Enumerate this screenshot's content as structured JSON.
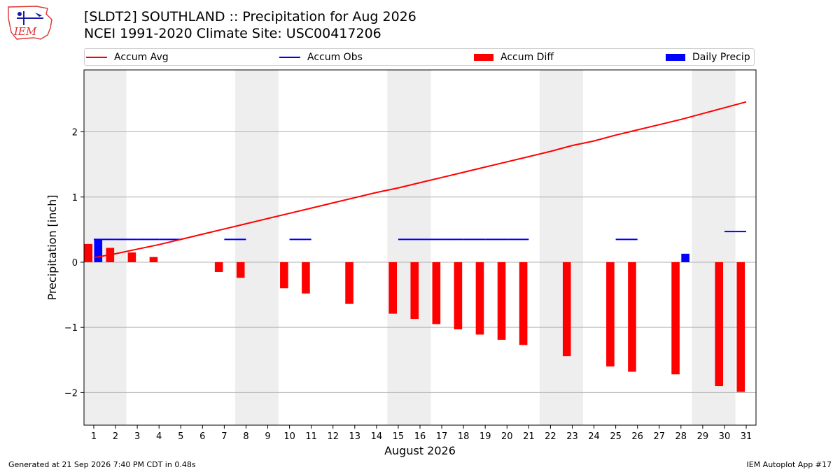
{
  "header": {
    "logo_text": "IEM",
    "title_line1": "[SLDT2] SOUTHLAND :: Precipitation for Aug 2026",
    "title_line2": "NCEI 1991-2020 Climate Site: USC00417206"
  },
  "footer": {
    "generated": "Generated at 21 Sep 2026 7:40 PM CDT in 0.48s",
    "app": "IEM Autoplot App #17"
  },
  "colors": {
    "accum_avg": "#ff0000",
    "accum_obs": "#0000ff",
    "accum_diff": "#ff0000",
    "daily_precip": "#0000ff",
    "weekend_shade": "#eeeeee",
    "grid": "#b0b0b0"
  },
  "chart_data": {
    "type": "bar",
    "xlabel": "August 2026",
    "ylabel": "Precipitation [inch]",
    "ylim": [
      -2.5,
      2.95
    ],
    "yticks": [
      -2,
      -1,
      0,
      1,
      2
    ],
    "ytick_labels": [
      "−2",
      "−1",
      "0",
      "1",
      "2"
    ],
    "xticks": [
      1,
      2,
      3,
      4,
      5,
      6,
      7,
      8,
      9,
      10,
      11,
      12,
      13,
      14,
      15,
      16,
      17,
      18,
      19,
      20,
      21,
      22,
      23,
      24,
      25,
      26,
      27,
      28,
      29,
      30,
      31
    ],
    "xtick_labels": [
      "1",
      "2",
      "3",
      "4",
      "5",
      "6",
      "7",
      "8",
      "9",
      "10",
      "11",
      "12",
      "13",
      "14",
      "15",
      "16",
      "17",
      "18",
      "19",
      "20",
      "21",
      "22",
      "23",
      "24",
      "25",
      "26",
      "27",
      "28",
      "29",
      "30",
      "31"
    ],
    "grid": "horizontal",
    "legend_position": "top",
    "weekend_shaded_days": [
      [
        1,
        2
      ],
      [
        8,
        9
      ],
      [
        15,
        16
      ],
      [
        22,
        23
      ],
      [
        29,
        30
      ]
    ],
    "series": [
      {
        "name": "Accum Avg",
        "kind": "line",
        "x": [
          1,
          2,
          3,
          4,
          5,
          6,
          7,
          8,
          9,
          10,
          11,
          12,
          13,
          14,
          15,
          16,
          17,
          18,
          19,
          20,
          21,
          22,
          23,
          24,
          25,
          26,
          27,
          28,
          29,
          30,
          31
        ],
        "values": [
          0.07,
          0.13,
          0.2,
          0.27,
          0.35,
          0.43,
          0.51,
          0.59,
          0.67,
          0.75,
          0.83,
          0.91,
          0.99,
          1.07,
          1.14,
          1.22,
          1.3,
          1.38,
          1.46,
          1.54,
          1.62,
          1.7,
          1.79,
          1.86,
          1.95,
          2.03,
          2.11,
          2.19,
          2.28,
          2.37,
          2.46
        ]
      },
      {
        "name": "Accum Obs",
        "kind": "step",
        "x": [
          1,
          2,
          3,
          4,
          5,
          7,
          8,
          10,
          11,
          15,
          16,
          17,
          18,
          19,
          20,
          21,
          25,
          26,
          30,
          31
        ],
        "values": [
          0.35,
          0.35,
          0.35,
          0.35,
          0.35,
          0.35,
          0.35,
          0.35,
          0.35,
          0.35,
          0.35,
          0.35,
          0.35,
          0.35,
          0.35,
          0.35,
          0.35,
          0.35,
          0.47,
          0.47
        ]
      },
      {
        "name": "Accum Diff",
        "kind": "bar",
        "x": [
          1,
          2,
          3,
          4,
          7,
          8,
          10,
          11,
          13,
          15,
          16,
          17,
          18,
          19,
          20,
          21,
          23,
          25,
          26,
          28,
          30,
          31
        ],
        "values": [
          0.28,
          0.22,
          0.15,
          0.08,
          -0.15,
          -0.24,
          -0.4,
          -0.48,
          -0.64,
          -0.79,
          -0.87,
          -0.95,
          -1.03,
          -1.11,
          -1.19,
          -1.27,
          -1.44,
          -1.6,
          -1.68,
          -1.72,
          -1.9,
          -1.99
        ]
      },
      {
        "name": "Daily Precip",
        "kind": "bar",
        "x": [
          1,
          28
        ],
        "values": [
          0.35,
          0.13
        ]
      }
    ]
  }
}
